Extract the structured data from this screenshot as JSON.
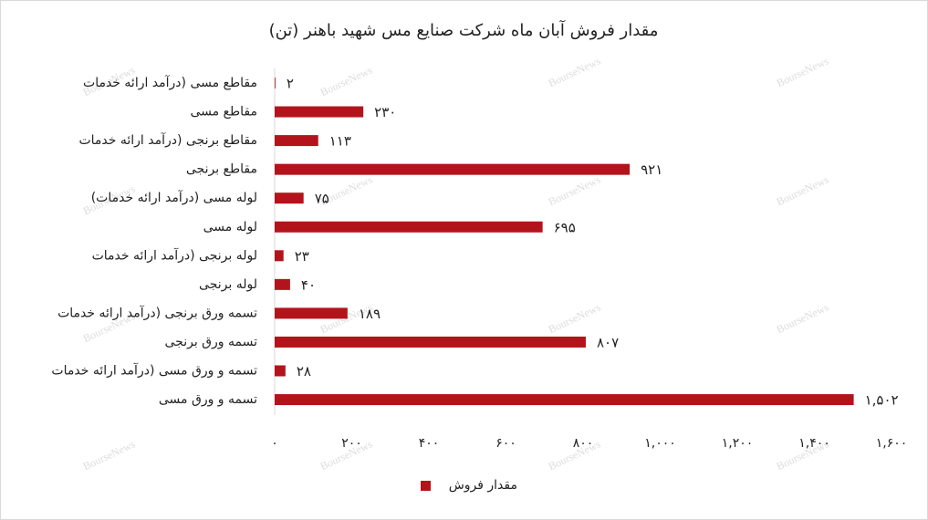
{
  "chart_data": {
    "type": "bar",
    "orientation": "horizontal",
    "title": "مقدار فروش آبان ماه شرکت صنایع مس شهید باهنر (تن)",
    "watermark": "BourseNews",
    "categories": [
      "مقاطع مسی (درآمد ارائه خدمات",
      "مقاطع مسی",
      "مقاطع برنجی (درآمد ارائه خدمات",
      "مقاطع برنجی",
      "لوله مسی (درآمد ارائه خدمات)",
      "لوله مسی",
      "لوله برنجی (درآمد ارائه خدمات",
      "لوله برنجی",
      "تسمه ورق برنجی (درآمد ارائه خدمات",
      "تسمه ورق برنجی",
      "تسمه و ورق مسی (درآمد ارائه خدمات",
      "تسمه و ورق مسی"
    ],
    "series": [
      {
        "name": "مقدار فروش",
        "color": "#b3141b",
        "values": [
          2,
          230,
          113,
          921,
          75,
          695,
          23,
          40,
          189,
          807,
          28,
          1502
        ],
        "value_labels": [
          "۲",
          "۲۳۰",
          "۱۱۳",
          "۹۲۱",
          "۷۵",
          "۶۹۵",
          "۲۳",
          "۴۰",
          "۱۸۹",
          "۸۰۷",
          "۲۸",
          "۱,۵۰۲"
        ]
      }
    ],
    "xlim": [
      0,
      1600
    ],
    "xticks": [
      {
        "value": 0,
        "label": "۰"
      },
      {
        "value": 200,
        "label": "۲۰۰"
      },
      {
        "value": 400,
        "label": "۴۰۰"
      },
      {
        "value": 600,
        "label": "۶۰۰"
      },
      {
        "value": 800,
        "label": "۸۰۰"
      },
      {
        "value": 1000,
        "label": "۱,۰۰۰"
      },
      {
        "value": 1200,
        "label": "۱,۲۰۰"
      },
      {
        "value": 1400,
        "label": "۱,۴۰۰"
      },
      {
        "value": 1600,
        "label": "۱,۶۰۰"
      }
    ],
    "grid": false,
    "legend": "bottom"
  }
}
